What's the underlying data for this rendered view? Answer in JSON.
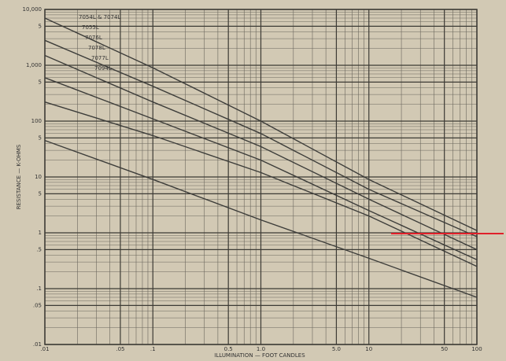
{
  "chart_data": {
    "type": "line",
    "ylabel": "RESISTANCE — K-OHMS",
    "xlabel": "ILLUMINATION — FOOT CANDLES",
    "log_x": true,
    "log_y": true,
    "grid": true,
    "xlim": [
      0.01,
      100
    ],
    "ylim": [
      0.01,
      10000
    ],
    "xticks": [
      {
        "value": 0.01,
        "label": ".01"
      },
      {
        "value": 0.05,
        "label": ".05"
      },
      {
        "value": 0.1,
        "label": ".1"
      },
      {
        "value": 0.5,
        "label": "0.5"
      },
      {
        "value": 1,
        "label": "1.0"
      },
      {
        "value": 5,
        "label": "5.0"
      },
      10,
      50,
      100
    ],
    "yticks": [
      {
        "value": 0.01,
        "label": ".01"
      },
      {
        "value": 0.05,
        "label": ".05"
      },
      {
        "value": 0.1,
        "label": ".1"
      },
      {
        "value": 0.5,
        "label": ".5"
      },
      1,
      5,
      10,
      {
        "value": 50,
        "label": "5"
      },
      100,
      {
        "value": 500,
        "label": "5"
      },
      {
        "value": 1000,
        "label": "1,000"
      },
      {
        "value": 5000,
        "label": "5"
      },
      {
        "value": 10000,
        "label": "10,000"
      }
    ],
    "x": [
      0.01,
      0.1,
      1,
      10,
      100
    ],
    "series": [
      {
        "name": "7054L & 7074L",
        "color": "#3d3d3a",
        "values": [
          7000,
          900,
          100,
          9,
          1.1
        ]
      },
      {
        "name": "7055L",
        "color": "#3d3d3a",
        "values": [
          2800,
          420,
          60,
          6,
          0.85
        ]
      },
      {
        "name": "7076L",
        "color": "#3d3d3a",
        "values": [
          1500,
          220,
          35,
          4,
          0.5
        ]
      },
      {
        "name": "7078L",
        "color": "#3d3d3a",
        "values": [
          600,
          110,
          20,
          2.5,
          0.33
        ]
      },
      {
        "name": "7077L",
        "color": "#3d3d3a",
        "values": [
          220,
          55,
          12,
          2,
          0.25
        ]
      },
      {
        "name": "7094L",
        "color": "#3d3d3a",
        "values": [
          45,
          9,
          1.7,
          0.35,
          0.07
        ]
      }
    ]
  }
}
